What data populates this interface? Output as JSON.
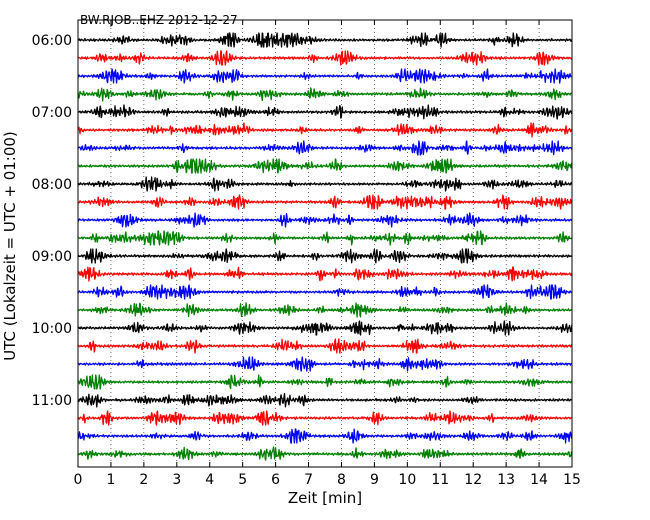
{
  "chart_data": {
    "type": "line",
    "title": "BW.RJOB..EHZ 2012-12-27",
    "xlabel": "Zeit  [min]",
    "ylabel": "UTC (Lokalzeit = UTC + 01:00)",
    "xlim": [
      0,
      15
    ],
    "x_ticks": [
      "0",
      "1",
      "2",
      "3",
      "4",
      "5",
      "6",
      "7",
      "8",
      "9",
      "10",
      "11",
      "12",
      "13",
      "14",
      "15"
    ],
    "y_ticks": [
      "06:00",
      "07:00",
      "08:00",
      "09:00",
      "10:00",
      "11:00"
    ],
    "grid": "vertical dotted",
    "trace_count": 24,
    "trace_minutes": 15,
    "trace_colors": [
      "#000000",
      "#ff0000",
      "#0000ff",
      "#008000"
    ]
  }
}
